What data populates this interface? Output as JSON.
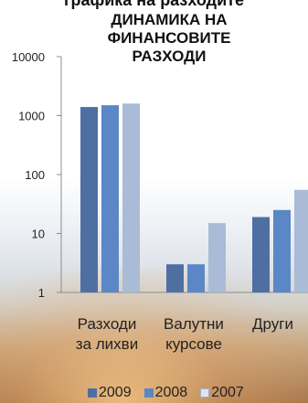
{
  "header_cut": "графика на разходите",
  "chart_data": {
    "type": "bar",
    "title": "ДИНАМИКА НА ФИНАНСОВИТЕ РАЗХОДИ",
    "title_lines": [
      "ДИНАМИКА НА",
      "ФИНАНСОВИТЕ",
      "РАЗХОДИ"
    ],
    "scale": "log",
    "ylim": [
      1,
      10000
    ],
    "yticks": [
      "10000",
      "1000",
      "100",
      "10",
      "1"
    ],
    "categories": [
      "Разходи за лихви",
      "Валутни курсове",
      "Други"
    ],
    "category_lines": [
      [
        "Разходи",
        "за лихви"
      ],
      [
        "Валутни",
        "курсове"
      ],
      [
        "Други"
      ]
    ],
    "series": [
      {
        "name": "2009",
        "color": "#4f6fa3",
        "values": [
          1400,
          3,
          19
        ]
      },
      {
        "name": "2008",
        "color": "#5b87c7",
        "values": [
          1500,
          3,
          25
        ]
      },
      {
        "name": "2007",
        "color": "#a9bbd6",
        "values": [
          1600,
          15,
          55
        ]
      }
    ],
    "legend_position": "bottom",
    "grid": false
  }
}
